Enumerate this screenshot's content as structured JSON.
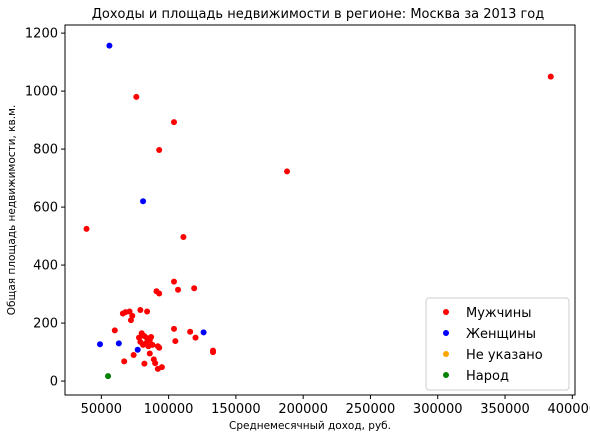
{
  "chart_data": {
    "type": "scatter",
    "title": "Доходы и площадь недвижимости в регионе: Москва за 2013 год",
    "xlabel": "Среднемесячный доход, руб.",
    "ylabel": "Общая площадь недвижимости, кв.м.",
    "xlim": [
      23000,
      402000
    ],
    "ylim": [
      -48,
      1228
    ],
    "xticks": [
      50000,
      100000,
      150000,
      200000,
      250000,
      300000,
      350000,
      400000
    ],
    "xtick_labels": [
      "50000",
      "100000",
      "150000",
      "200000",
      "250000",
      "300000",
      "350000",
      "400000"
    ],
    "yticks": [
      0,
      200,
      400,
      600,
      800,
      1000,
      1200
    ],
    "ytick_labels": [
      "0",
      "200",
      "400",
      "600",
      "800",
      "1000",
      "1200"
    ],
    "grid": false,
    "legend_position": "bottom-right",
    "series": [
      {
        "name": "Мужчины",
        "color": "#ff0000",
        "points": [
          [
            384000,
            1050
          ],
          [
            76000,
            980
          ],
          [
            104000,
            893
          ],
          [
            93000,
            797
          ],
          [
            188000,
            723
          ],
          [
            39000,
            525
          ],
          [
            111000,
            497
          ],
          [
            104000,
            343
          ],
          [
            107000,
            315
          ],
          [
            119000,
            320
          ],
          [
            91000,
            310
          ],
          [
            93000,
            302
          ],
          [
            79000,
            245
          ],
          [
            84000,
            240
          ],
          [
            66000,
            233
          ],
          [
            68000,
            238
          ],
          [
            71000,
            240
          ],
          [
            73000,
            225
          ],
          [
            72000,
            210
          ],
          [
            60000,
            175
          ],
          [
            78000,
            150
          ],
          [
            80000,
            165
          ],
          [
            82000,
            155
          ],
          [
            84000,
            148
          ],
          [
            86000,
            140
          ],
          [
            87000,
            152
          ],
          [
            79000,
            135
          ],
          [
            81000,
            125
          ],
          [
            83000,
            130
          ],
          [
            85000,
            120
          ],
          [
            88000,
            125
          ],
          [
            92000,
            120
          ],
          [
            93000,
            115
          ],
          [
            104000,
            180
          ],
          [
            116000,
            170
          ],
          [
            120000,
            150
          ],
          [
            105000,
            138
          ],
          [
            86000,
            95
          ],
          [
            74000,
            90
          ],
          [
            67000,
            68
          ],
          [
            89000,
            75
          ],
          [
            90000,
            62
          ],
          [
            82000,
            60
          ],
          [
            95000,
            48
          ],
          [
            92000,
            42
          ],
          [
            133000,
            105
          ],
          [
            133000,
            100
          ]
        ]
      },
      {
        "name": "Женщины",
        "color": "#0000ff",
        "points": [
          [
            56000,
            1157
          ],
          [
            81000,
            620
          ],
          [
            49000,
            127
          ],
          [
            63000,
            130
          ],
          [
            77000,
            108
          ],
          [
            126000,
            168
          ]
        ]
      },
      {
        "name": "Не указано",
        "color": "#ffa500",
        "points": []
      },
      {
        "name": "Народ",
        "color": "#008000",
        "points": [
          [
            55000,
            17
          ]
        ]
      }
    ]
  }
}
